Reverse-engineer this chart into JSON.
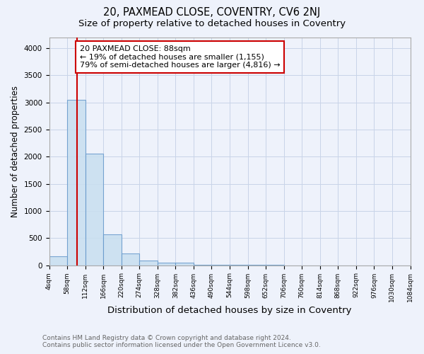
{
  "title": "20, PAXMEAD CLOSE, COVENTRY, CV6 2NJ",
  "subtitle": "Size of property relative to detached houses in Coventry",
  "xlabel": "Distribution of detached houses by size in Coventry",
  "ylabel": "Number of detached properties",
  "footer_line1": "Contains HM Land Registry data © Crown copyright and database right 2024.",
  "footer_line2": "Contains public sector information licensed under the Open Government Licence v3.0.",
  "annotation_title": "20 PAXMEAD CLOSE: 88sqm",
  "annotation_line1": "← 19% of detached houses are smaller (1,155)",
  "annotation_line2": "79% of semi-detached houses are larger (4,816) →",
  "property_size": 88,
  "bin_edges": [
    4,
    58,
    112,
    166,
    220,
    274,
    328,
    382,
    436,
    490,
    544,
    598,
    652,
    706,
    760,
    814,
    868,
    922,
    976,
    1030,
    1084
  ],
  "counts": [
    170,
    3050,
    2060,
    570,
    220,
    80,
    50,
    50,
    10,
    5,
    2,
    2,
    2,
    1,
    1,
    0,
    0,
    0,
    0,
    0
  ],
  "bar_facecolor": "#c8dff0",
  "bar_edgecolor": "#6699cc",
  "bar_alpha": 0.85,
  "vline_color": "#cc0000",
  "vline_x": 88,
  "annotation_box_edgecolor": "#cc0000",
  "annotation_box_facecolor": "#ffffff",
  "ylim": [
    0,
    4200
  ],
  "yticks": [
    0,
    500,
    1000,
    1500,
    2000,
    2500,
    3000,
    3500,
    4000
  ],
  "grid_color": "#c8d4e8",
  "background_color": "#eef2fb",
  "title_fontsize": 10.5,
  "subtitle_fontsize": 9.5,
  "xlabel_fontsize": 9.5,
  "ylabel_fontsize": 8.5,
  "tick_fontsize": 6.5,
  "footer_fontsize": 6.5,
  "annotation_fontsize": 8
}
